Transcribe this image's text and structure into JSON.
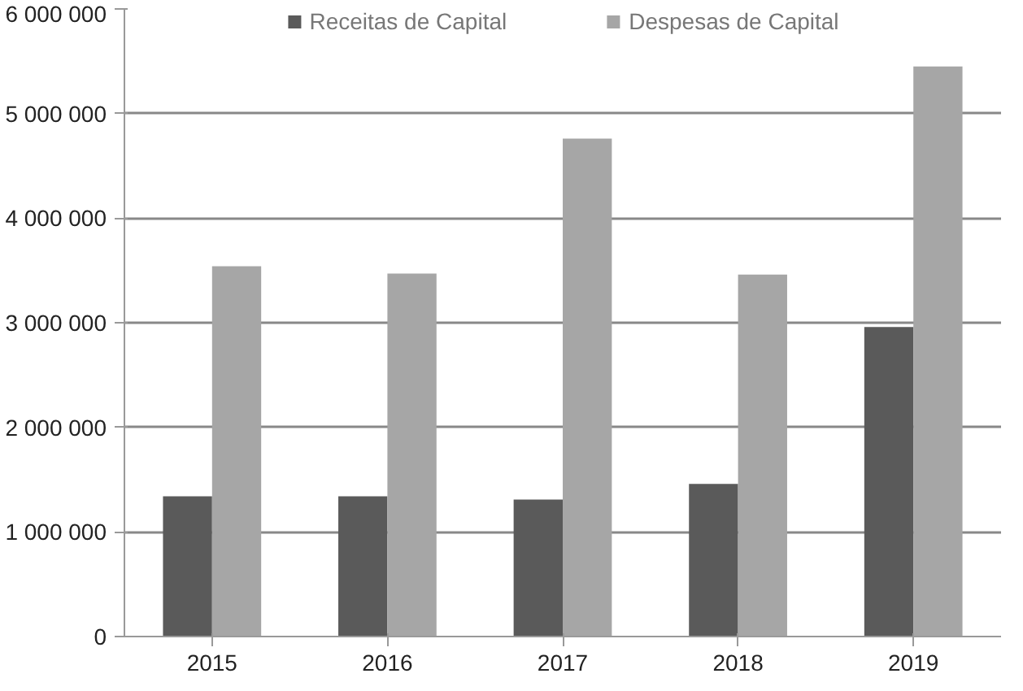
{
  "chart_data": {
    "type": "bar",
    "categories": [
      "2015",
      "2016",
      "2017",
      "2018",
      "2019"
    ],
    "series": [
      {
        "name": "Receitas de Capital",
        "color": "#5a5a5a",
        "values": [
          1340000,
          1340000,
          1310000,
          1460000,
          2960000
        ]
      },
      {
        "name": "Despesas de Capital",
        "color": "#a6a6a6",
        "values": [
          3540000,
          3470000,
          4760000,
          3460000,
          5450000
        ]
      }
    ],
    "ylim": [
      0,
      6000000
    ],
    "yticks": [
      {
        "value": 0,
        "label": "0"
      },
      {
        "value": 1000000,
        "label": "1 000 000"
      },
      {
        "value": 2000000,
        "label": "2 000 000"
      },
      {
        "value": 3000000,
        "label": "3 000 000"
      },
      {
        "value": 4000000,
        "label": "4 000 000"
      },
      {
        "value": 5000000,
        "label": "5 000 000"
      },
      {
        "value": 6000000,
        "label": "6 000 000"
      }
    ],
    "grid": "y",
    "legend": "top"
  }
}
